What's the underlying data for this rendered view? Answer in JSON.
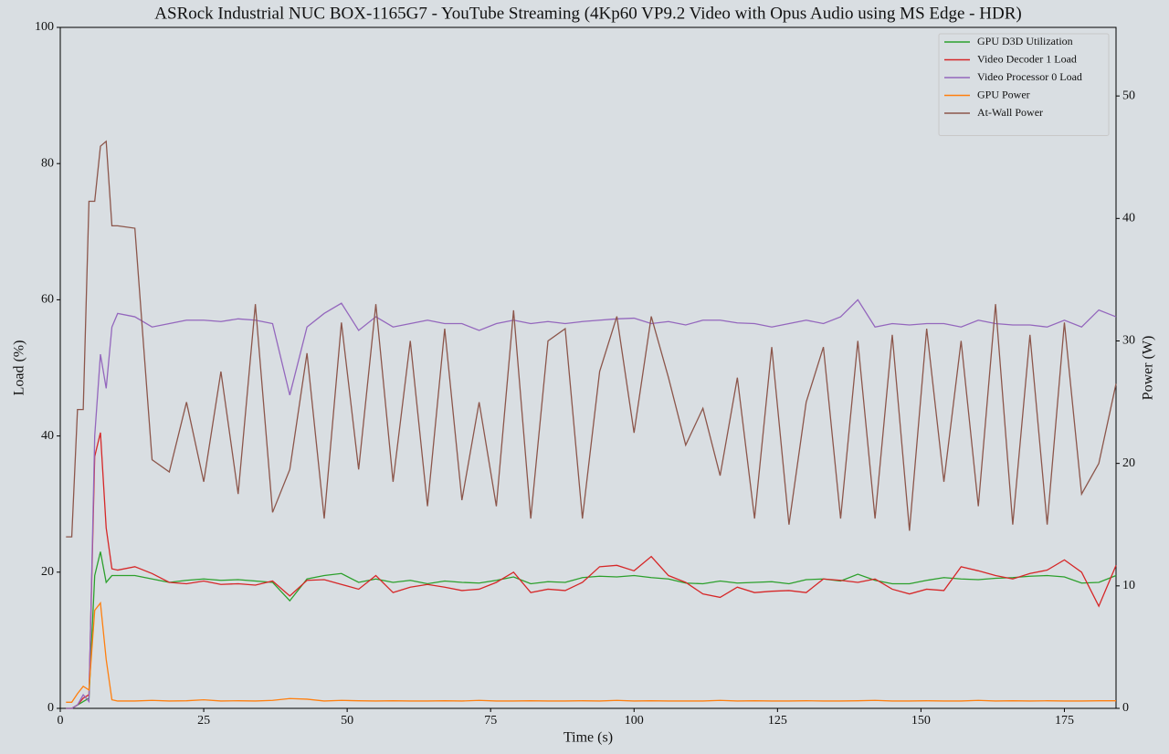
{
  "chart_data": {
    "type": "line",
    "title": "ASRock Industrial NUC BOX-1165G7 - YouTube Streaming (4Kp60 VP9.2 Video with Opus Audio using MS Edge - HDR)",
    "xlabel": "Time (s)",
    "ylabel": "Load (%)",
    "y2label": "Power (W)",
    "xlim": [
      0,
      184
    ],
    "xticks": [
      0,
      25,
      50,
      75,
      100,
      125,
      150,
      175
    ],
    "ylim": [
      0,
      100
    ],
    "yticks": [
      0,
      20,
      40,
      60,
      80,
      100
    ],
    "y2lim": [
      0,
      55.6
    ],
    "y2ticks": [
      0,
      10,
      20,
      30,
      40,
      50
    ],
    "legend": "upper right",
    "grid": false,
    "x": [
      1,
      2,
      3,
      4,
      5,
      6,
      7,
      8,
      9,
      10,
      13,
      16,
      19,
      22,
      25,
      28,
      31,
      34,
      37,
      40,
      43,
      46,
      49,
      52,
      55,
      58,
      61,
      64,
      67,
      70,
      73,
      76,
      79,
      82,
      85,
      88,
      91,
      94,
      97,
      100,
      103,
      106,
      109,
      112,
      115,
      118,
      121,
      124,
      127,
      130,
      133,
      136,
      139,
      142,
      145,
      148,
      151,
      154,
      157,
      160,
      163,
      166,
      169,
      172,
      175,
      178,
      181,
      184
    ],
    "series": [
      {
        "name": "GPU D3D Utilization",
        "color": "#2ca02c",
        "values": [
          0,
          0,
          0.5,
          1,
          1.5,
          19.5,
          23,
          18.5,
          19.5,
          19.5,
          19.5,
          19,
          18.5,
          18.8,
          19,
          18.8,
          18.9,
          18.7,
          18.5,
          15.8,
          19,
          19.5,
          19.8,
          18.5,
          19,
          18.5,
          18.8,
          18.3,
          18.7,
          18.5,
          18.4,
          18.8,
          19.3,
          18.3,
          18.6,
          18.5,
          19.2,
          19.4,
          19.3,
          19.5,
          19.2,
          19,
          18.4,
          18.3,
          18.7,
          18.4,
          18.5,
          18.6,
          18.3,
          18.9,
          19,
          18.7,
          19.7,
          18.8,
          18.3,
          18.3,
          18.8,
          19.2,
          19,
          18.9,
          19.1,
          19.2,
          19.4,
          19.5,
          19.3,
          18.4,
          18.5,
          19.5
        ]
      },
      {
        "name": "Video Decoder 1 Load",
        "color": "#d62728",
        "values": [
          0,
          0,
          0.5,
          1.5,
          2,
          37,
          40.5,
          26.5,
          20.5,
          20.3,
          20.8,
          19.8,
          18.5,
          18.3,
          18.7,
          18.2,
          18.3,
          18.1,
          18.7,
          16.5,
          18.8,
          18.9,
          18.2,
          17.5,
          19.5,
          17,
          17.8,
          18.2,
          17.8,
          17.3,
          17.5,
          18.5,
          20,
          17,
          17.5,
          17.3,
          18.5,
          20.8,
          21,
          20.2,
          22.3,
          19.5,
          18.5,
          16.8,
          16.3,
          17.8,
          17,
          17.2,
          17.3,
          17,
          19,
          18.8,
          18.5,
          19,
          17.5,
          16.8,
          17.5,
          17.3,
          20.8,
          20.2,
          19.5,
          19,
          19.8,
          20.3,
          21.8,
          20,
          15,
          21
        ]
      },
      {
        "name": "Video Processor 0 Load",
        "color": "#9467bd",
        "values": [
          0,
          0,
          0.5,
          2,
          1,
          40,
          52,
          47,
          56,
          58,
          57.5,
          56,
          56.5,
          57,
          57,
          56.8,
          57.2,
          57,
          56.5,
          46,
          56,
          58,
          59.5,
          55.5,
          57.5,
          56,
          56.5,
          57,
          56.5,
          56.5,
          55.5,
          56.5,
          57,
          56.5,
          56.8,
          56.5,
          56.8,
          57,
          57.2,
          57.3,
          56.5,
          56.8,
          56.3,
          57,
          57,
          56.6,
          56.5,
          56,
          56.5,
          57,
          56.5,
          57.5,
          60,
          56,
          56.5,
          56.3,
          56.5,
          56.5,
          56,
          57,
          56.5,
          56.3,
          56.3,
          56,
          57,
          56,
          58.5,
          57.5
        ]
      },
      {
        "name": "GPU Power",
        "color": "#ff7f0e",
        "axis": "y2",
        "values": [
          0.5,
          0.5,
          1.2,
          1.8,
          1.5,
          8,
          8.6,
          4,
          0.7,
          0.6,
          0.6,
          0.65,
          0.6,
          0.62,
          0.7,
          0.6,
          0.62,
          0.6,
          0.65,
          0.8,
          0.75,
          0.6,
          0.65,
          0.62,
          0.6,
          0.62,
          0.6,
          0.6,
          0.62,
          0.6,
          0.65,
          0.6,
          0.6,
          0.62,
          0.6,
          0.6,
          0.62,
          0.6,
          0.65,
          0.6,
          0.62,
          0.6,
          0.6,
          0.6,
          0.65,
          0.6,
          0.62,
          0.6,
          0.6,
          0.62,
          0.6,
          0.6,
          0.62,
          0.65,
          0.6,
          0.6,
          0.62,
          0.6,
          0.6,
          0.65,
          0.6,
          0.62,
          0.6,
          0.62,
          0.6,
          0.6,
          0.62,
          0.62
        ]
      },
      {
        "name": "At-Wall Power",
        "color": "#8c564b",
        "axis": "y2",
        "values": [
          14,
          14,
          24.4,
          24.4,
          41.4,
          41.4,
          45.9,
          46.3,
          39.4,
          39.4,
          39.2,
          20.3,
          19.3,
          25,
          18.5,
          27.5,
          17.5,
          33,
          16,
          19.5,
          29,
          15.5,
          31.5,
          19.5,
          33,
          18.5,
          30,
          16.5,
          31,
          17,
          25,
          16.5,
          32.5,
          15.5,
          30,
          31,
          15.5,
          27.5,
          32,
          22.5,
          32,
          27,
          21.5,
          24.5,
          19,
          27,
          15.5,
          29.5,
          15,
          25,
          29.5,
          15.5,
          30,
          15.5,
          30.5,
          14.5,
          31,
          18.5,
          30,
          16.5,
          33,
          15,
          30.5,
          15,
          31.5,
          17.5,
          20,
          26.5
        ]
      }
    ]
  }
}
